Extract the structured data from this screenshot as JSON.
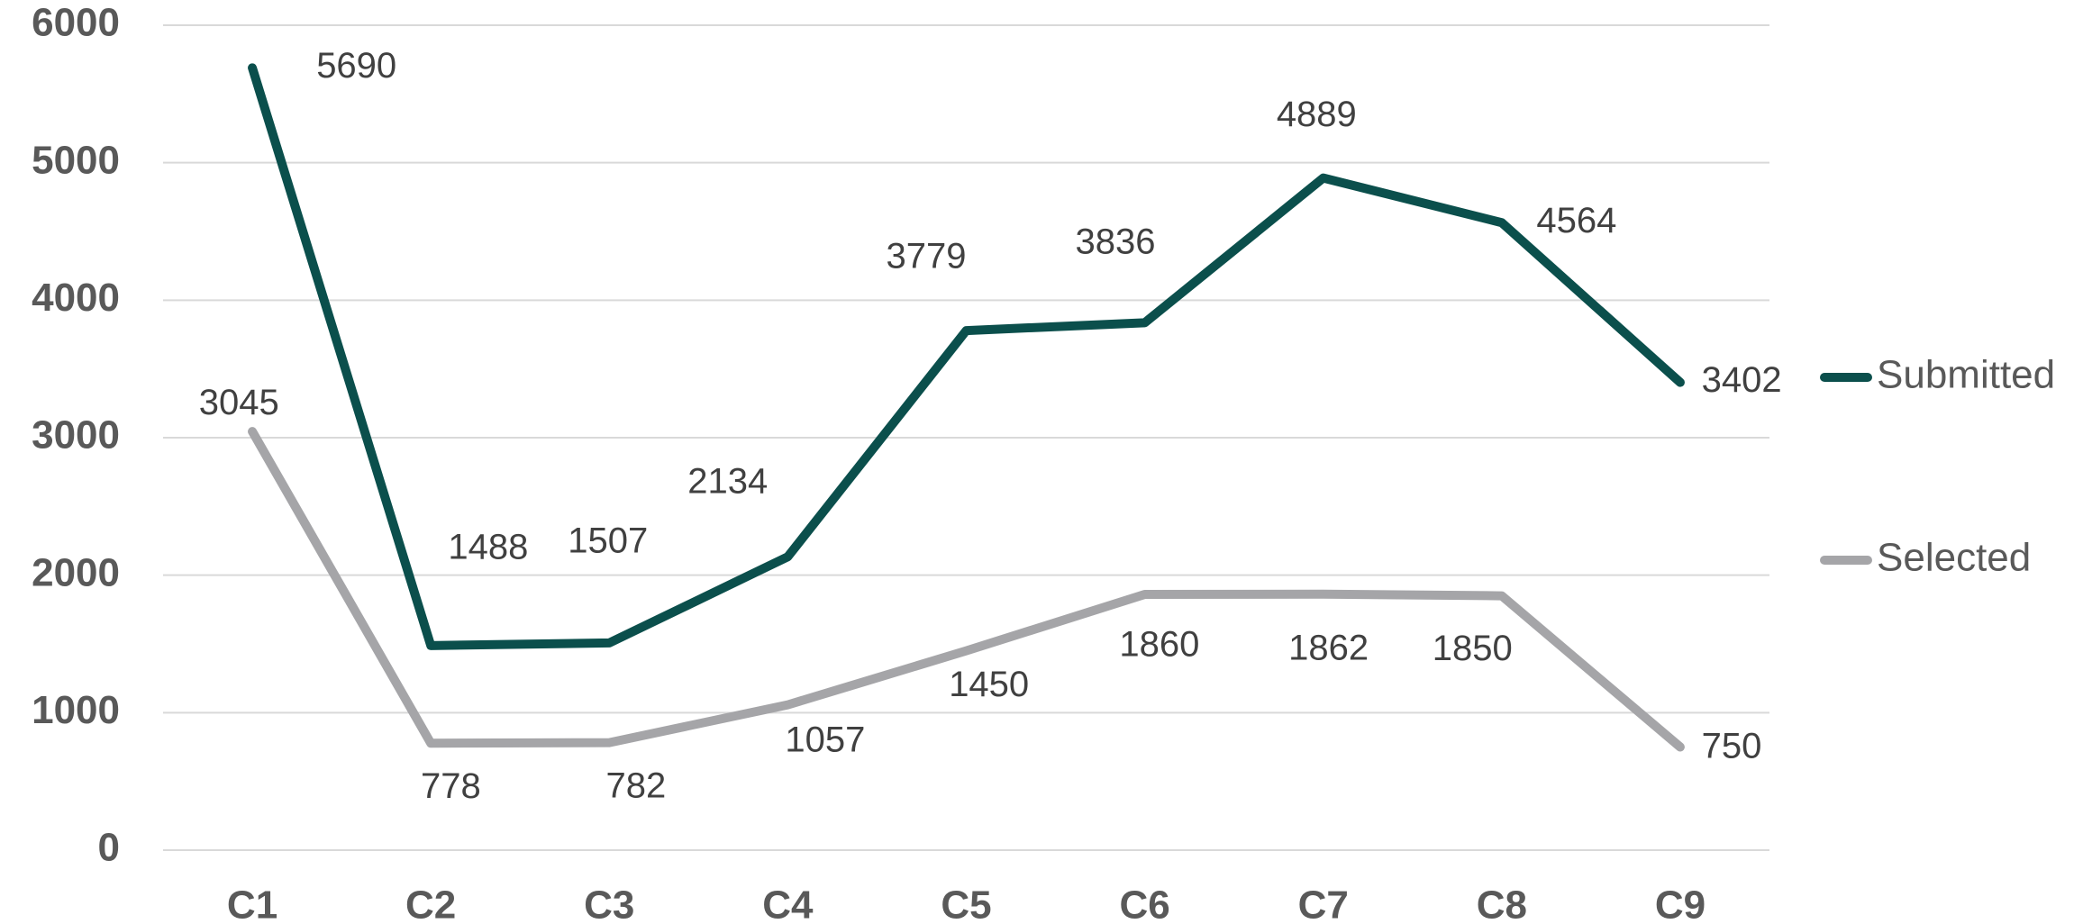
{
  "chart_data": {
    "type": "line",
    "categories": [
      "C1",
      "C2",
      "C3",
      "C4",
      "C5",
      "C6",
      "C7",
      "C8",
      "C9"
    ],
    "series": [
      {
        "name": "Submitted",
        "color": "#0b4f4c",
        "values": [
          5690,
          1488,
          1507,
          2134,
          3779,
          3836,
          4889,
          4564,
          3402
        ]
      },
      {
        "name": "Selected",
        "color": "#a5a5a8",
        "values": [
          3045,
          778,
          782,
          1057,
          1450,
          1860,
          1862,
          1850,
          750
        ]
      }
    ],
    "ylim": [
      0,
      6000
    ],
    "yticks": [
      0,
      1000,
      2000,
      3000,
      4000,
      5000,
      6000
    ],
    "grid": true,
    "legend": "right"
  }
}
